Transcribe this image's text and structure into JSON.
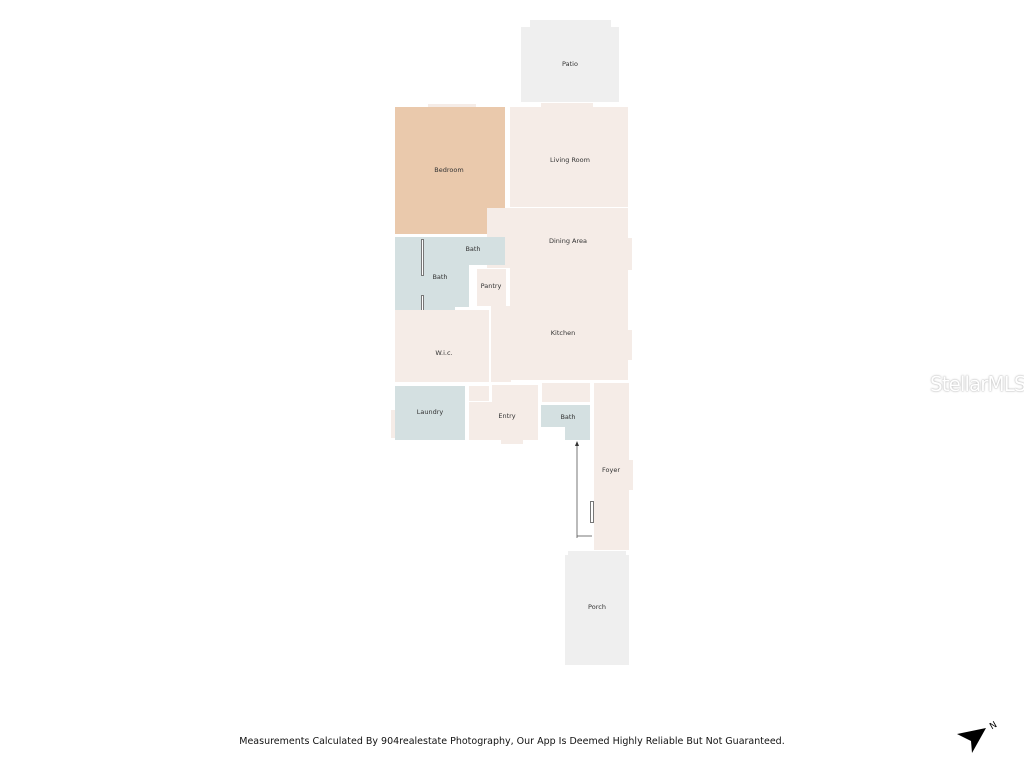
{
  "rooms": {
    "patio": "Patio",
    "bedroom": "Bedroom",
    "living_room": "Living Room",
    "dining_area": "Dining Area",
    "bath_main": "Bath",
    "bath_small": "Bath",
    "pantry": "Pantry",
    "kitchen": "Kitchen",
    "wic": "W.i.c.",
    "laundry": "Laundry",
    "entry": "Entry",
    "bath_hall": "Bath",
    "foyer": "Foyer",
    "porch": "Porch"
  },
  "colors": {
    "living": "#f5ece7",
    "bedroom": "#eac9ac",
    "wet": "#d4e0e1",
    "outdoor": "#efefef"
  },
  "watermark": "StellarMLS",
  "compass": {
    "icon": "north-arrow-icon",
    "label": "N"
  },
  "footer": "Measurements Calculated By 904realestate Photography, Our App Is Deemed Highly Reliable But Not Guaranteed."
}
